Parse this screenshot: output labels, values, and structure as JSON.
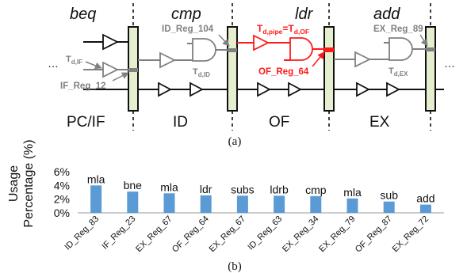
{
  "diagram": {
    "instructions": [
      "beq",
      "cmp",
      "ldr",
      "add"
    ],
    "stages": [
      "PC/IF",
      "ID",
      "OF",
      "EX"
    ],
    "registers": {
      "if_reg": "IF_Reg_12",
      "id_reg": "ID_Reg_104",
      "of_reg": "OF_Reg_64",
      "ex_reg": "EX_Reg_89"
    },
    "delays": {
      "if_main": "T",
      "if_sub": "d,IF",
      "id_main": "T",
      "id_sub": "d,ID",
      "of_main1": "T",
      "of_sub1": "d,pipe",
      "of_eq": "=",
      "of_main2": "T",
      "of_sub2": "d,OF",
      "ex_main": "T",
      "ex_sub": "d,EX"
    },
    "ellipsis": "…",
    "caption": "(a)",
    "colors": {
      "highlight": "#ff1a1a",
      "gray": "#808080",
      "latch": "#e6eed0"
    }
  },
  "chart_caption": "(b)",
  "chart_data": {
    "type": "bar",
    "ylabel": "Usage Percentage (%)",
    "yticks": [
      "0%",
      "2%",
      "4%",
      "6%"
    ],
    "ylim": [
      0,
      6
    ],
    "categories": [
      "ID_Reg_83",
      "IF_Reg_23",
      "EX_Reg_67",
      "OF_Reg_64",
      "EX_Reg_67",
      "ID_Reg_63",
      "EX_Reg_34",
      "EX_Reg_79",
      "OF_Reg_87",
      "EX_Reg_72"
    ],
    "values": [
      4.0,
      3.1,
      2.85,
      2.55,
      2.5,
      2.5,
      2.45,
      2.1,
      1.65,
      1.2
    ],
    "bar_labels": [
      "mla",
      "bne",
      "mla",
      "ldr",
      "subs",
      "ldrb",
      "cmp",
      "mla",
      "sub",
      "add"
    ],
    "bar_color": "#5b9bd5",
    "grid": false
  }
}
